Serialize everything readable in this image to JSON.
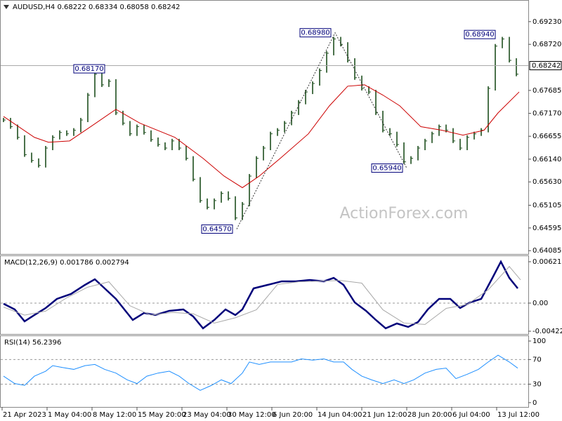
{
  "watermark": "ActionForex.com",
  "chart_data": [
    {
      "type": "bars",
      "title": "AUDUSD,H4  0.68222 0.68334 0.68058 0.68242",
      "color": "#1f4f1f",
      "xlim": [
        -2.5,
        373.5
      ],
      "ylim": [
        0.6401,
        0.697
      ],
      "xticks": [
        {
          "value": -1,
          "label": "21 Apr 2023"
        },
        {
          "value": 31,
          "label": "1 May 04:00"
        },
        {
          "value": 63,
          "label": "8 May 12:00"
        },
        {
          "value": 95,
          "label": "15 May 20:00"
        },
        {
          "value": 127,
          "label": "23 May 04:00"
        },
        {
          "value": 159,
          "label": "30 May 12:00"
        },
        {
          "value": 191,
          "label": "6 Jun 20:00"
        },
        {
          "value": 223,
          "label": "14 Jun 04:00"
        },
        {
          "value": 255,
          "label": "21 Jun 12:00"
        },
        {
          "value": 287,
          "label": "28 Jun 20:00"
        },
        {
          "value": 319,
          "label": "6 Jul 04:00"
        },
        {
          "value": 351,
          "label": "13 Jul 12:00"
        }
      ],
      "yticks": [
        {
          "value": 0.6923,
          "label": "0.69230"
        },
        {
          "value": 0.6872,
          "label": "0.68720"
        },
        0.67685,
        {
          "value": 0.6717,
          "label": "0.67170"
        },
        0.66655,
        {
          "value": 0.6614,
          "label": "0.66140"
        },
        {
          "value": 0.6563,
          "label": "0.65630"
        },
        0.65105,
        0.64595,
        0.64085
      ],
      "x": [
        0,
        5,
        10,
        15,
        20,
        25,
        30,
        35,
        40,
        45,
        50,
        55,
        60,
        65,
        70,
        75,
        80,
        85,
        90,
        95,
        100,
        105,
        110,
        115,
        120,
        125,
        130,
        135,
        140,
        145,
        150,
        155,
        160,
        165,
        170,
        175,
        180,
        185,
        190,
        195,
        200,
        205,
        210,
        215,
        220,
        225,
        230,
        235,
        240,
        245,
        250,
        255,
        260,
        265,
        270,
        275,
        280,
        285,
        290,
        295,
        300,
        305,
        310,
        315,
        320,
        325,
        330,
        335,
        340,
        345,
        350,
        355,
        360,
        365
      ],
      "values": [
        0.6702,
        0.6687,
        0.6663,
        0.6624,
        0.6611,
        0.66,
        0.6639,
        0.6663,
        0.6674,
        0.6671,
        0.6679,
        0.6702,
        0.6758,
        0.6805,
        0.6781,
        0.6789,
        0.6718,
        0.6695,
        0.6671,
        0.6687,
        0.6674,
        0.6658,
        0.6647,
        0.6639,
        0.6655,
        0.6639,
        0.6616,
        0.6569,
        0.6521,
        0.6506,
        0.6521,
        0.6537,
        0.6526,
        0.6482,
        0.6513,
        0.6576,
        0.6616,
        0.6639,
        0.6671,
        0.6679,
        0.6695,
        0.6718,
        0.6742,
        0.6765,
        0.6784,
        0.6813,
        0.6852,
        0.6884,
        0.6872,
        0.6836,
        0.6797,
        0.6773,
        0.6765,
        0.6718,
        0.6679,
        0.6671,
        0.6647,
        0.6608,
        0.6616,
        0.6639,
        0.6655,
        0.6671,
        0.6687,
        0.6679,
        0.6655,
        0.6639,
        0.6663,
        0.6671,
        0.6679,
        0.6773,
        0.6868,
        0.6884,
        0.6836,
        0.6805
      ],
      "overlay": {
        "color": "#cc0000",
        "x": [
          0,
          22,
          32,
          47,
          62,
          80,
          97,
          122,
          142,
          157,
          170,
          182,
          197,
          217,
          232,
          245,
          257,
          270,
          282,
          297,
          312,
          327,
          342,
          352,
          367
        ],
        "values": [
          0.671,
          0.6663,
          0.6652,
          0.6655,
          0.6687,
          0.6726,
          0.6695,
          0.6663,
          0.6616,
          0.6576,
          0.655,
          0.6576,
          0.6616,
          0.6671,
          0.6734,
          0.6778,
          0.6781,
          0.6758,
          0.6734,
          0.6687,
          0.6679,
          0.6668,
          0.6679,
          0.6718,
          0.6765
        ]
      },
      "last_price": 0.68242,
      "annotations": [
        {
          "x": 75,
          "value": 0.6817,
          "label": "0.68170"
        },
        {
          "x": 166,
          "value": 0.6457,
          "label": "0.64570"
        },
        {
          "x": 236,
          "value": 0.6898,
          "label": "0.68980"
        },
        {
          "x": 287,
          "value": 0.6594,
          "label": "0.65940"
        },
        {
          "x": 353,
          "value": 0.6894,
          "label": "0.68940"
        }
      ]
    },
    {
      "type": "line",
      "title": "MACD(12,26,9) 0.001786 0.002794",
      "xlim": [
        -2.5,
        373.5
      ],
      "ylim": [
        -0.00464,
        0.00706
      ],
      "yticks": [
        0.006217,
        {
          "value": 0,
          "label": "0.00"
        },
        -0.004221
      ],
      "levels": [
        0
      ],
      "series": [
        {
          "color": "#00007a",
          "width": 2.5,
          "x": [
            0,
            8,
            15,
            22,
            30,
            38,
            48,
            58,
            65,
            72,
            80,
            88,
            92,
            100,
            108,
            118,
            128,
            135,
            142,
            150,
            158,
            165,
            170,
            178,
            188,
            198,
            208,
            218,
            228,
            235,
            242,
            250,
            258,
            265,
            272,
            280,
            288,
            295,
            302,
            310,
            318,
            325,
            332,
            340,
            348,
            354,
            360,
            366
          ],
          "values": [
            -0.0001,
            -0.00095,
            -0.00274,
            -0.00179,
            -0.00074,
            0.00063,
            0.00137,
            0.00274,
            0.00358,
            0.00221,
            0.00063,
            -0.00148,
            -0.00253,
            -0.00148,
            -0.00179,
            -0.00116,
            -0.00095,
            -0.002,
            -0.00379,
            -0.00253,
            -0.00095,
            -0.00179,
            -0.00095,
            0.00221,
            0.00274,
            0.00327,
            0.00327,
            0.00348,
            0.00327,
            0.00379,
            0.00274,
            0.0001,
            -0.00116,
            -0.00253,
            -0.00379,
            -0.00306,
            -0.00358,
            -0.00285,
            -0.00095,
            0.00063,
            0.00063,
            -0.00074,
            0.0001,
            0.00063,
            0.00379,
            0.00622,
            0.00379,
            0.00221
          ]
        },
        {
          "color": "#a8a8a8",
          "width": 1,
          "x": [
            0,
            15,
            30,
            45,
            60,
            75,
            90,
            105,
            120,
            135,
            150,
            165,
            180,
            195,
            210,
            225,
            240,
            255,
            270,
            285,
            300,
            315,
            330,
            345,
            360,
            368
          ],
          "values": [
            -0.0006,
            -0.0018,
            -0.0012,
            0.0008,
            0.0024,
            0.0032,
            -0.0004,
            -0.0018,
            -0.0014,
            -0.0016,
            -0.003,
            -0.0022,
            -0.001,
            0.0028,
            0.0032,
            0.0033,
            0.0034,
            0.003,
            -0.001,
            -0.003,
            -0.0032,
            -0.0008,
            -0.0002,
            0.002,
            0.0055,
            0.0035
          ]
        }
      ]
    },
    {
      "type": "line",
      "title": "RSI(14) 56.2396",
      "xlim": [
        -2.5,
        373.5
      ],
      "ylim": [
        -7,
        108
      ],
      "yticks": [
        100,
        70,
        30,
        0
      ],
      "levels": [
        70,
        30
      ],
      "series": [
        {
          "color": "#1e8fff",
          "width": 1,
          "x": [
            0,
            8,
            15,
            22,
            30,
            35,
            42,
            50,
            58,
            65,
            72,
            80,
            88,
            95,
            102,
            110,
            118,
            125,
            132,
            140,
            148,
            155,
            162,
            170,
            175,
            182,
            190,
            198,
            205,
            212,
            220,
            228,
            235,
            242,
            248,
            255,
            262,
            270,
            278,
            285,
            292,
            300,
            308,
            315,
            322,
            330,
            338,
            345,
            352,
            360,
            366
          ],
          "values": [
            43,
            31,
            28,
            43,
            51,
            60,
            57,
            54,
            60,
            62,
            54,
            48,
            37,
            31,
            43,
            48,
            51,
            43,
            31,
            20,
            28,
            37,
            31,
            48,
            66,
            62,
            66,
            66,
            66,
            71,
            69,
            71,
            66,
            66,
            54,
            43,
            37,
            31,
            37,
            31,
            37,
            48,
            54,
            56,
            39,
            46,
            54,
            66,
            77,
            66,
            56
          ]
        }
      ]
    }
  ]
}
